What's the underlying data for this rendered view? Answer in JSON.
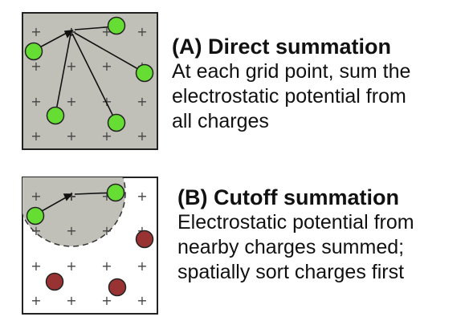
{
  "panel_a": {
    "heading": "(A) Direct summation",
    "lines": [
      "At each grid point, sum the",
      "electrostatic potential from",
      "all charges"
    ],
    "grid_marker": "+"
  },
  "panel_b": {
    "heading": "(B) Cutoff summation",
    "lines": [
      "Electrostatic potential from",
      "nearby charges summed;",
      "spatially sort charges first"
    ],
    "grid_marker": "+"
  },
  "colors": {
    "box_fill_a": "#c0c0b8",
    "box_fill_b": "#ffffff",
    "cutoff_fill": "#c0c0b8",
    "near_charge": "#66dd33",
    "far_charge": "#993333",
    "outline": "#222222"
  }
}
